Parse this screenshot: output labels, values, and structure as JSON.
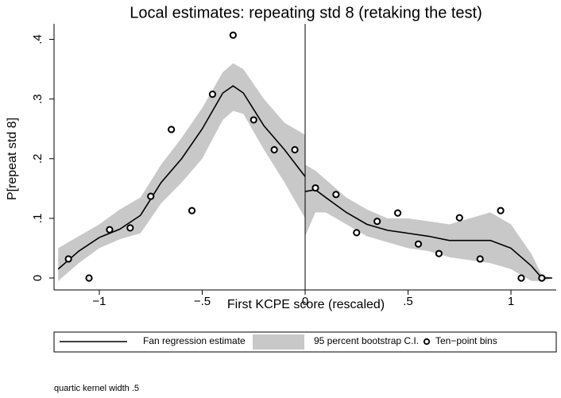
{
  "chart_data": {
    "type": "fan-regression",
    "title": "Local estimates: repeating std 8 (retaking the test)",
    "x_label": "First KCPE score (rescaled)",
    "y_label": "P[repeat std 8]",
    "note": "quartic kernel width .5",
    "xlim": [
      -1.22,
      1.22
    ],
    "ylim": [
      -0.02,
      0.426
    ],
    "xticks": [
      {
        "value": -1,
        "label": "−1"
      },
      {
        "value": -0.5,
        "label": "−.5"
      },
      0,
      {
        "value": 0.5,
        "label": ".5"
      },
      1
    ],
    "yticks": [
      0,
      {
        "value": 0.1,
        "label": ".1"
      },
      {
        "value": 0.2,
        "label": ".2"
      },
      {
        "value": 0.3,
        "label": ".3"
      },
      {
        "value": 0.4,
        "label": ".4"
      }
    ],
    "xline": 0,
    "legend": "bottom",
    "series": [
      {
        "name": "Fan regression estimate",
        "kind": "line",
        "color": "#000000",
        "x": [
          -1.2,
          -1.1,
          -1.0,
          -0.9,
          -0.8,
          -0.7,
          -0.6,
          -0.5,
          -0.4,
          -0.35,
          -0.3,
          -0.2,
          -0.1,
          0,
          0,
          0,
          0.05,
          0.1,
          0.2,
          0.3,
          0.4,
          0.5,
          0.6,
          0.7,
          0.8,
          0.9,
          1.0,
          1.1,
          1.15,
          1.2
        ],
        "values": [
          0.015,
          0.045,
          0.068,
          0.082,
          0.105,
          0.16,
          0.2,
          0.25,
          0.31,
          0.322,
          0.31,
          0.255,
          0.215,
          0.17,
          null,
          0.145,
          0.148,
          0.135,
          0.11,
          0.09,
          0.08,
          0.075,
          0.07,
          0.063,
          0.063,
          0.063,
          0.05,
          0.02,
          0,
          0
        ]
      },
      {
        "name": "95 percent bootstrap C.I.",
        "kind": "band",
        "color": "#c8c8c8",
        "x": [
          -1.2,
          -1.1,
          -1.0,
          -0.9,
          -0.8,
          -0.7,
          -0.6,
          -0.5,
          -0.4,
          -0.35,
          -0.3,
          -0.2,
          -0.1,
          0,
          0,
          0,
          0.05,
          0.1,
          0.2,
          0.3,
          0.4,
          0.5,
          0.6,
          0.7,
          0.8,
          0.9,
          1.0,
          1.1,
          1.15,
          1.2
        ],
        "lower": [
          -0.005,
          0.025,
          0.05,
          0.065,
          0.075,
          0.125,
          0.16,
          0.2,
          0.265,
          0.28,
          0.275,
          0.215,
          0.16,
          0.1,
          null,
          0.07,
          0.11,
          0.11,
          0.09,
          0.07,
          0.06,
          0.05,
          0.045,
          0.035,
          0.03,
          0.025,
          0.015,
          -0.005,
          -0.005,
          0
        ],
        "upper": [
          0.05,
          0.07,
          0.09,
          0.115,
          0.135,
          0.19,
          0.235,
          0.285,
          0.345,
          0.36,
          0.35,
          0.3,
          0.26,
          0.24,
          null,
          0.19,
          0.18,
          0.165,
          0.135,
          0.115,
          0.1,
          0.1,
          0.095,
          0.09,
          0.1,
          0.11,
          0.09,
          0.04,
          0.005,
          0
        ]
      },
      {
        "name": "Ten−point bins",
        "kind": "scatter",
        "color": "#000000",
        "x": [
          -1.15,
          -1.05,
          -0.95,
          -0.85,
          -0.75,
          -0.65,
          -0.55,
          -0.45,
          -0.35,
          -0.25,
          -0.15,
          -0.05,
          0.05,
          0.15,
          0.25,
          0.35,
          0.45,
          0.55,
          0.65,
          0.75,
          0.85,
          0.95,
          1.05,
          1.15
        ],
        "values": [
          0.032,
          0,
          0.081,
          0.084,
          0.137,
          0.249,
          0.113,
          0.308,
          0.407,
          0.265,
          0.215,
          0.215,
          0.151,
          0.14,
          0.076,
          0.095,
          0.109,
          0.057,
          0.041,
          0.101,
          0.032,
          0.113,
          0,
          0
        ]
      }
    ]
  }
}
